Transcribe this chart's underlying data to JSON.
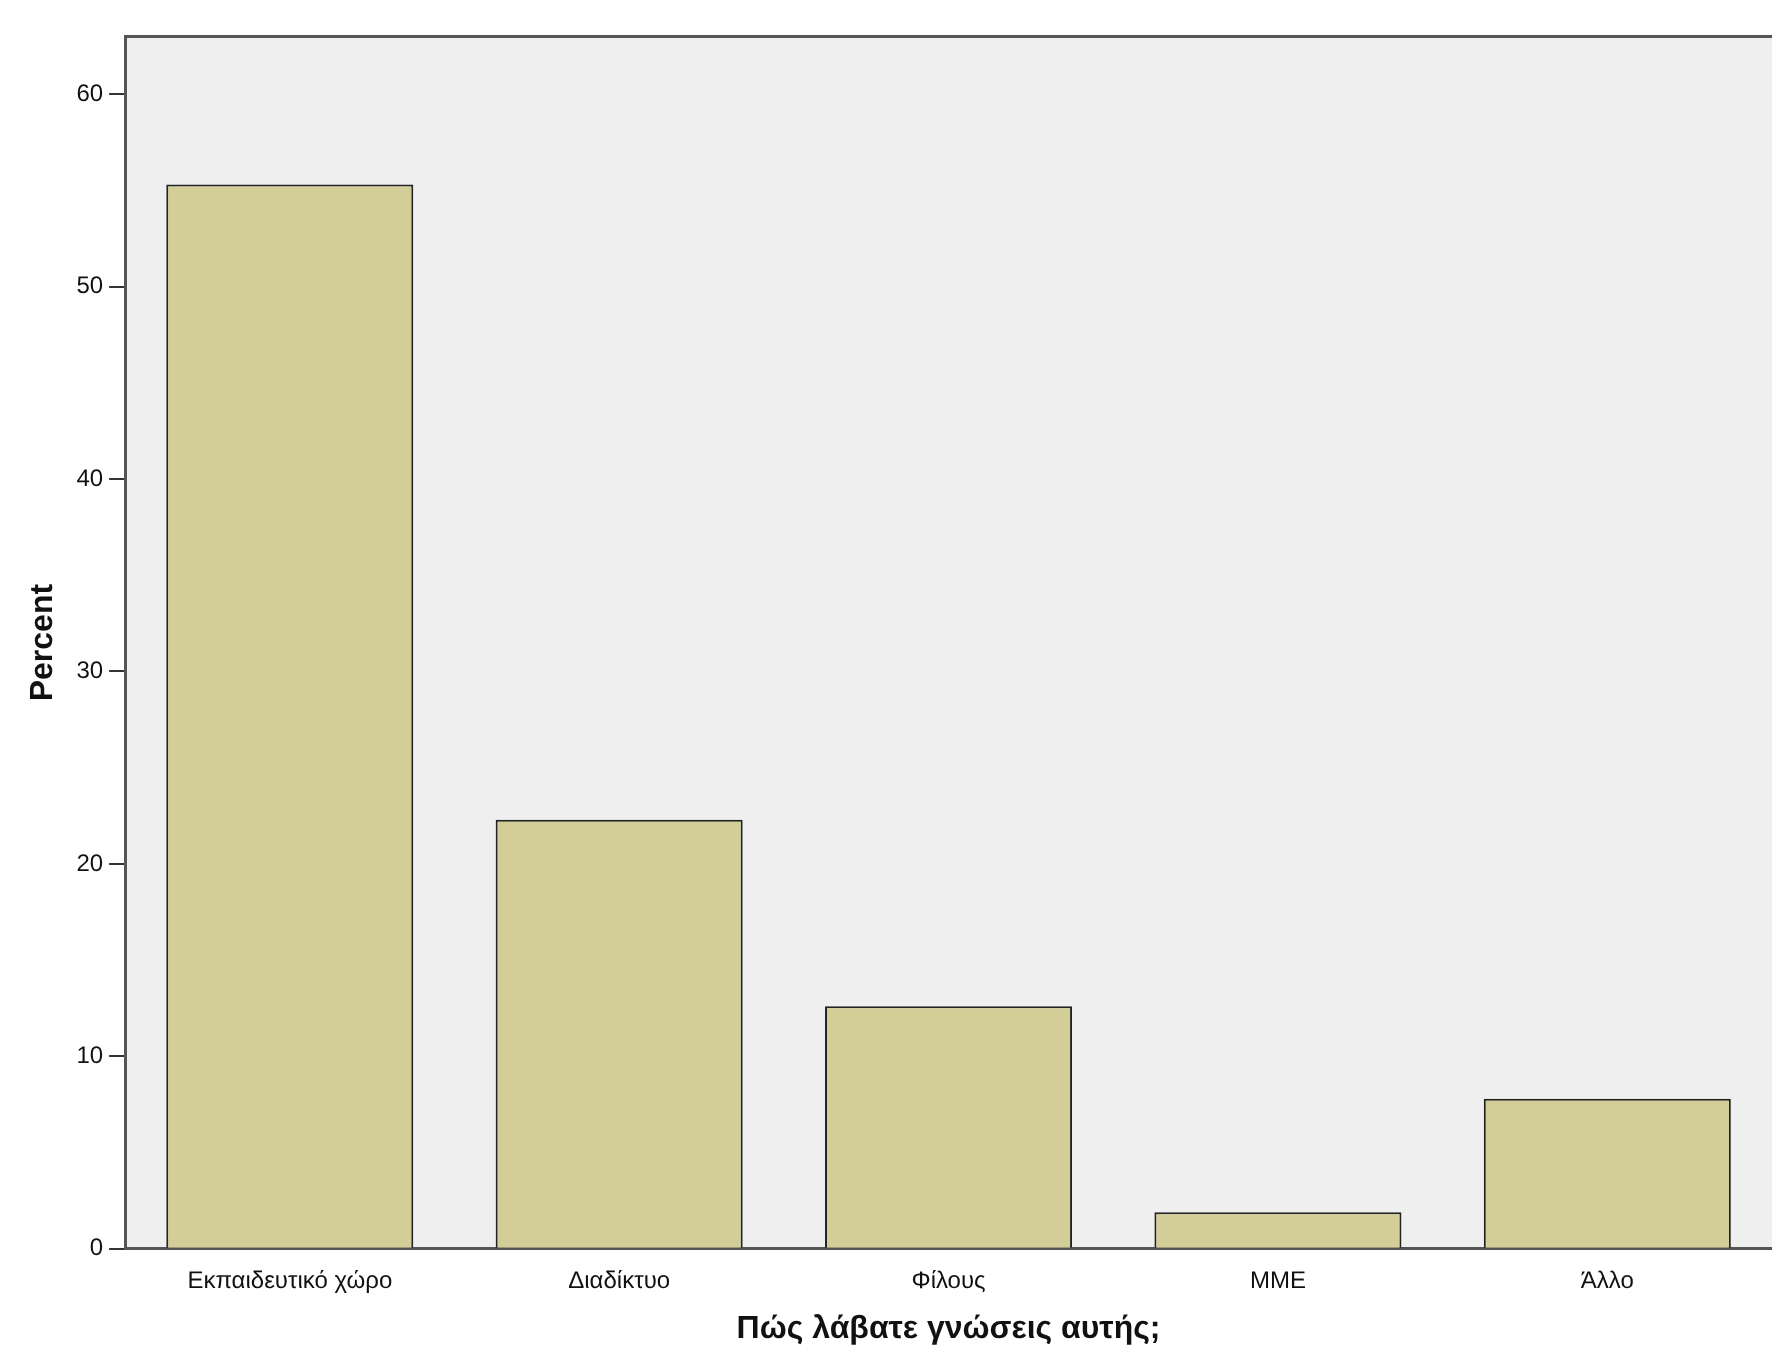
{
  "chart_data": {
    "type": "bar",
    "xlabel": "Πώς λάβατε γνώσεις αυτής;",
    "ylabel": "Percent",
    "categories": [
      "Εκπαιδευτικό χώρο",
      "Διαδίκτυο",
      "Φίλους",
      "ΜΜΕ",
      "Άλλο"
    ],
    "values": [
      55.3,
      22.3,
      12.6,
      1.9,
      7.8
    ],
    "color": "#d3ce97",
    "ylim": [
      0,
      63
    ],
    "yticks": [
      0,
      10,
      20,
      30,
      40,
      50,
      60
    ],
    "grid": false,
    "legend": false
  }
}
